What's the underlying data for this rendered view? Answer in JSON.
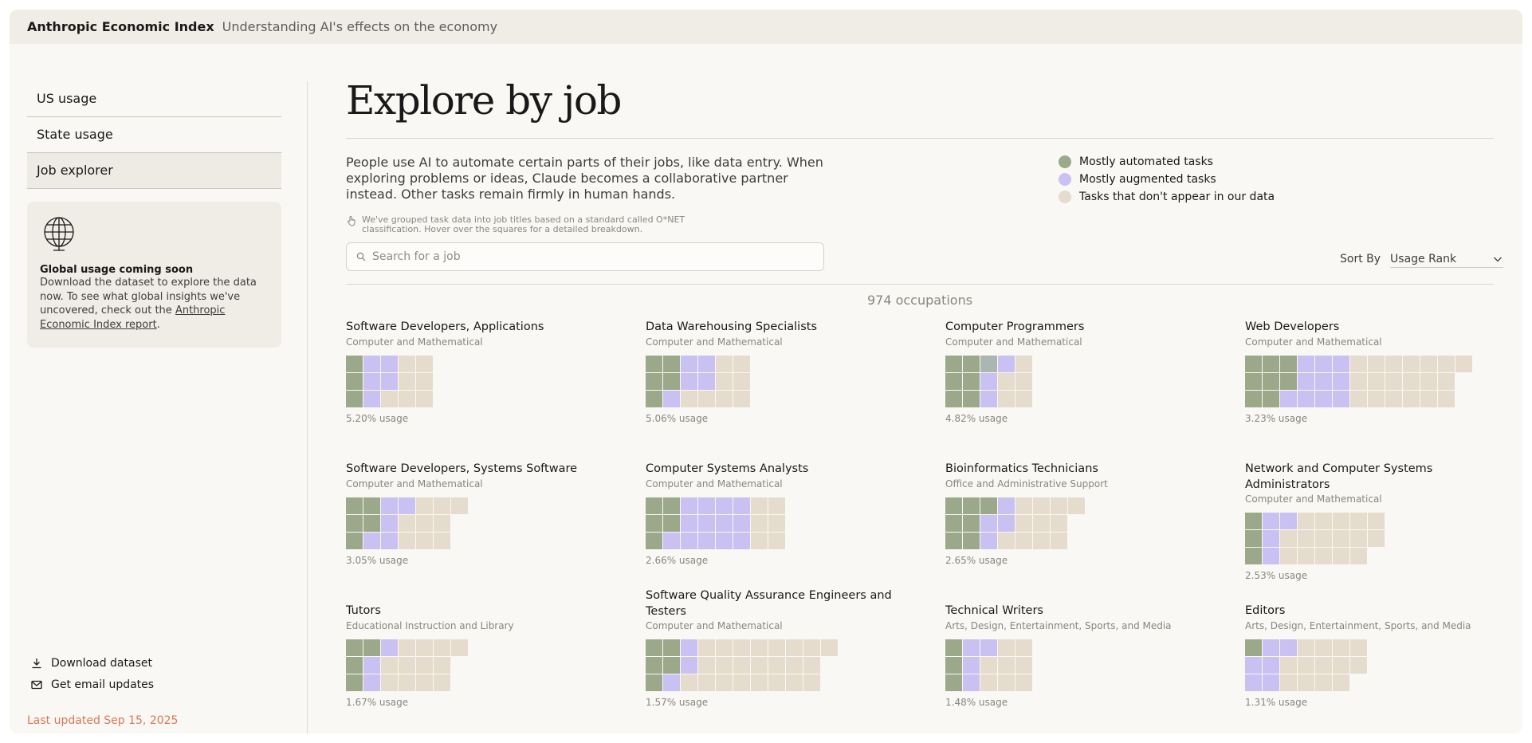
{
  "header": {
    "brand": "Anthropic Economic Index",
    "tagline": "Understanding AI's effects on the economy"
  },
  "sidebar": {
    "nav": [
      {
        "label": "US usage",
        "active": false
      },
      {
        "label": "State usage",
        "active": false
      },
      {
        "label": "Job explorer",
        "active": true
      }
    ],
    "callout": {
      "title": "Global usage coming soon",
      "body": "Download the dataset to explore the data now. To see what global insights we've uncovered, check out the ",
      "link": "Anthropic Economic Index report",
      "suffix": "."
    },
    "actions": {
      "download": "Download dataset",
      "email": "Get email updates"
    },
    "updated": "Last updated Sep 15, 2025"
  },
  "main": {
    "title": "Explore by job",
    "intro": "People use AI to automate certain parts of their jobs, like data entry. When exploring problems or ideas, Claude becomes a collaborative partner instead. Other tasks remain firmly in human hands.",
    "note": "We've grouped task data into job titles based on a standard called O*NET classification. Hover over the squares for a detailed breakdown.",
    "legend": [
      {
        "label": "Mostly automated tasks",
        "color": "#9ba88a"
      },
      {
        "label": "Mostly augmented tasks",
        "color": "#c9c1f2"
      },
      {
        "label": "Tasks that don't appear in our data",
        "color": "#e5dccd"
      }
    ],
    "search": {
      "placeholder": "Search for a job",
      "value": ""
    },
    "sort": {
      "label": "Sort By",
      "value": "Usage Rank"
    },
    "count": "974 occupations"
  },
  "occupations": [
    {
      "title": "Software Developers, Applications",
      "category": "Computer and Mathematical",
      "usage": "5.20% usage",
      "cells": [
        "aggnn",
        "aggnn",
        "agnnn"
      ]
    },
    {
      "title": "Data Warehousing Specialists",
      "category": "Computer and Mathematical",
      "usage": "5.06% usage",
      "cells": [
        "aaggnn",
        "aaggnn",
        "agnnnn"
      ]
    },
    {
      "title": "Computer Programmers",
      "category": "Computer and Mathematical",
      "usage": "4.82% usage",
      "cells": [
        "aamgn",
        "aagnn",
        "aagnn"
      ]
    },
    {
      "title": "Web Developers",
      "category": "Computer and Mathematical",
      "usage": "3.23% usage",
      "cells": [
        "aaagggnnnnnnn",
        "aaagggnnnnnn",
        "aaggggnnnnnn"
      ]
    },
    {
      "title": "Software Developers, Systems Software",
      "category": "Computer and Mathematical",
      "usage": "3.05% usage",
      "cells": [
        "aaggnnn",
        "aagnnn",
        "aggnnn"
      ]
    },
    {
      "title": "Computer Systems Analysts",
      "category": "Computer and Mathematical",
      "usage": "2.66% usage",
      "cells": [
        "aaggggnn",
        "aaggggnn",
        "agggggnn"
      ]
    },
    {
      "title": "Bioinformatics Technicians",
      "category": "Office and Administrative Support",
      "usage": "2.65% usage",
      "cells": [
        "aaagnnnn",
        "aaggnnn",
        "aagnnnn"
      ]
    },
    {
      "title": "Network and Computer Systems Administrators",
      "category": "Computer and Mathematical",
      "usage": "2.53% usage",
      "cells": [
        "aggnnnnn",
        "agnnnnnn",
        "agnnnnn"
      ]
    },
    {
      "title": "Tutors",
      "category": "Educational Instruction and Library",
      "usage": "1.67% usage",
      "cells": [
        "aagnnnn",
        "agnnnn",
        "agnnnn"
      ]
    },
    {
      "title": "Software Quality Assurance Engineers and Testers",
      "category": "Computer and Mathematical",
      "usage": "1.57% usage",
      "cells": [
        "aagnnnnnnnn",
        "aagnnnnnnn",
        "agnnnnnnnn"
      ]
    },
    {
      "title": "Technical Writers",
      "category": "Arts, Design, Entertainment, Sports, and Media",
      "usage": "1.48% usage",
      "cells": [
        "aggnn",
        "agnnn",
        "agnnn"
      ]
    },
    {
      "title": "Editors",
      "category": "Arts, Design, Entertainment, Sports, and Media",
      "usage": "1.31% usage",
      "cells": [
        "aggnnnn",
        "ggnnnnn",
        "ggnnnn"
      ]
    }
  ]
}
